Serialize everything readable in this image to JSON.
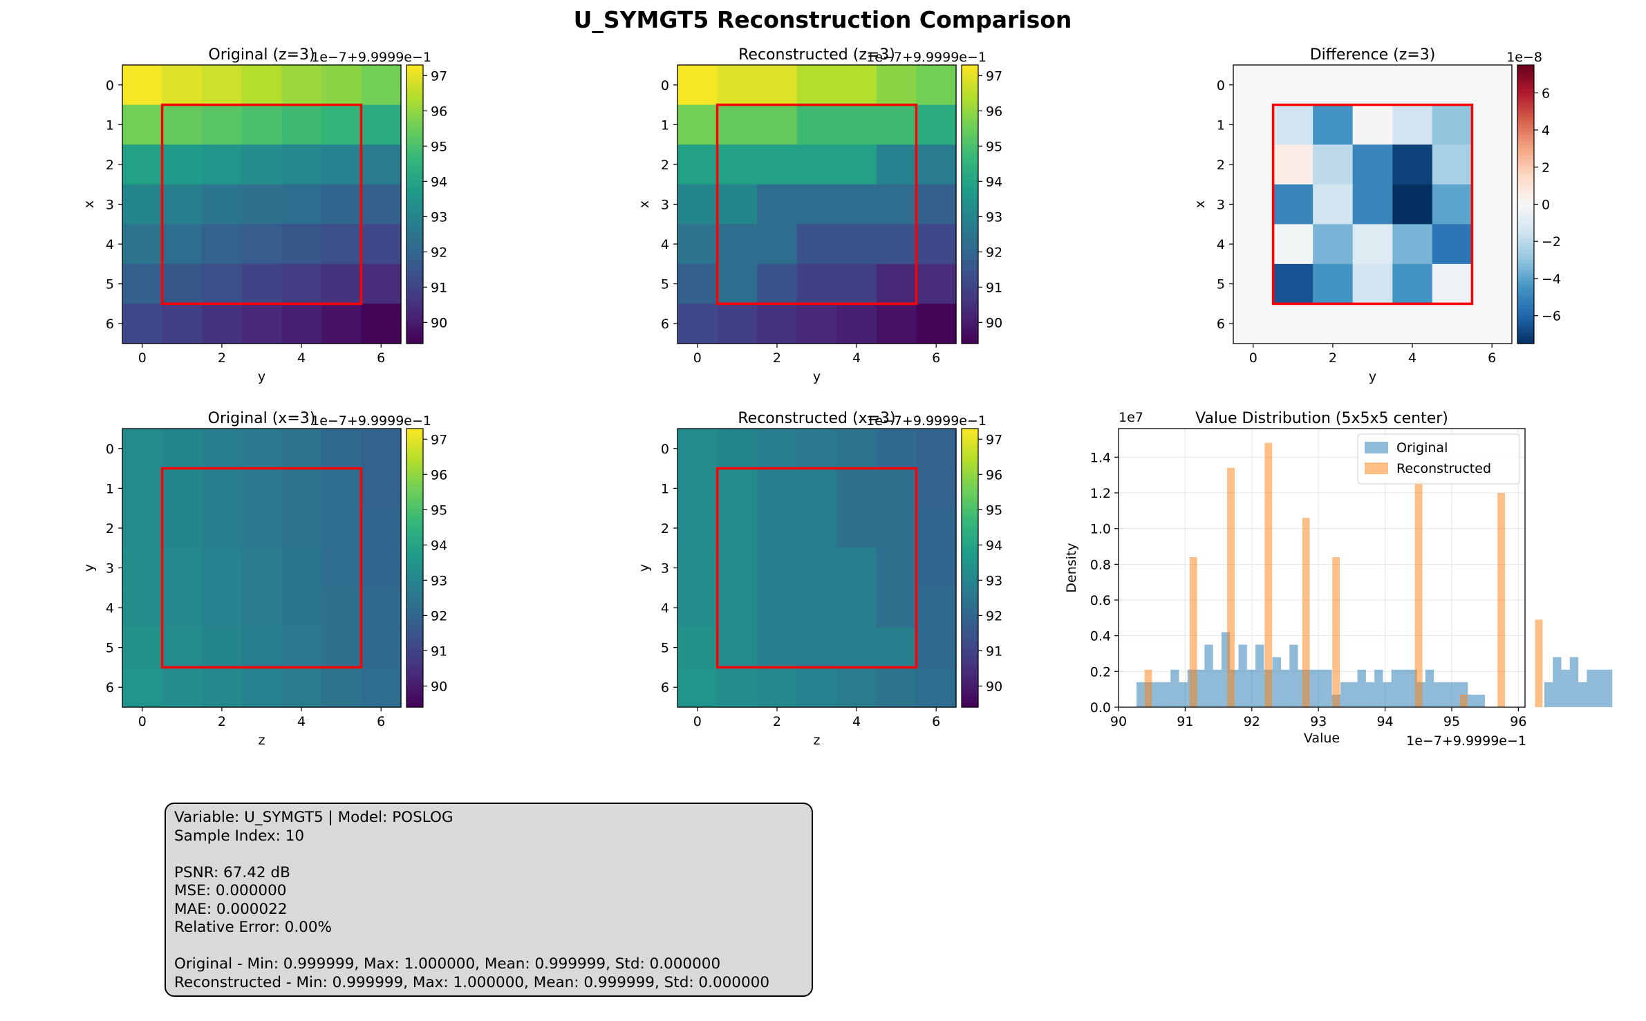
{
  "suptitle": "U_SYMGT5 Reconstruction Comparison",
  "colors": {
    "highlight_box": "#ff0000",
    "original_hist": "#1f77b4",
    "reconstructed_hist": "#ff7f0e"
  },
  "chart_data": [
    {
      "type": "heatmap",
      "title": "Original (z=3)",
      "xlabel": "y",
      "ylabel": "x",
      "xticks": [
        "0",
        "2",
        "4",
        "6"
      ],
      "yticks": [
        "0",
        "1",
        "2",
        "3",
        "4",
        "5",
        "6"
      ],
      "colormap": "viridis",
      "vmin": 89.4,
      "vmax": 97.3,
      "colorbar_ticks": [
        "90",
        "91",
        "92",
        "93",
        "94",
        "95",
        "96",
        "97"
      ],
      "offset_text": "1e−7+9.9999e−1",
      "highlight_box": {
        "x_range": [
          0.5,
          5.5
        ],
        "y_range": [
          0.5,
          5.5
        ]
      },
      "values": [
        [
          97.2,
          96.9,
          96.7,
          96.4,
          96.1,
          95.9,
          95.6
        ],
        [
          95.6,
          95.4,
          95.2,
          95.0,
          94.8,
          94.6,
          94.3
        ],
        [
          93.9,
          93.7,
          93.5,
          93.3,
          93.1,
          92.9,
          92.7
        ],
        [
          93.0,
          92.8,
          92.5,
          92.3,
          92.2,
          92.0,
          91.8
        ],
        [
          92.4,
          92.2,
          91.9,
          91.7,
          91.5,
          91.3,
          91.1
        ],
        [
          91.8,
          91.5,
          91.3,
          91.0,
          90.8,
          90.6,
          90.4
        ],
        [
          91.1,
          90.9,
          90.6,
          90.3,
          90.1,
          89.8,
          89.5
        ]
      ]
    },
    {
      "type": "heatmap",
      "title": "Reconstructed (z=3)",
      "xlabel": "y",
      "ylabel": "x",
      "xticks": [
        "0",
        "2",
        "4",
        "6"
      ],
      "yticks": [
        "0",
        "1",
        "2",
        "3",
        "4",
        "5",
        "6"
      ],
      "colormap": "viridis",
      "vmin": 89.4,
      "vmax": 97.3,
      "colorbar_ticks": [
        "90",
        "91",
        "92",
        "93",
        "94",
        "95",
        "96",
        "97"
      ],
      "offset_text": "1e−7+9.9999e−1",
      "highlight_box": {
        "x_range": [
          0.5,
          5.5
        ],
        "y_range": [
          0.5,
          5.5
        ]
      },
      "values": [
        [
          97.2,
          96.9,
          96.9,
          96.4,
          96.4,
          95.9,
          95.6
        ],
        [
          95.6,
          95.4,
          95.4,
          94.8,
          94.8,
          94.8,
          94.3
        ],
        [
          93.9,
          93.9,
          93.9,
          93.9,
          93.9,
          92.9,
          92.7
        ],
        [
          93.0,
          93.0,
          92.2,
          92.2,
          92.2,
          92.2,
          91.8
        ],
        [
          92.4,
          92.2,
          92.2,
          91.4,
          91.4,
          91.4,
          91.1
        ],
        [
          91.8,
          92.2,
          91.4,
          90.9,
          90.9,
          90.3,
          90.4
        ],
        [
          91.1,
          90.9,
          90.6,
          90.3,
          90.1,
          89.8,
          89.5
        ]
      ]
    },
    {
      "type": "heatmap",
      "title": "Difference (z=3)",
      "xlabel": "y",
      "ylabel": "x",
      "xticks": [
        "0",
        "2",
        "4",
        "6"
      ],
      "yticks": [
        "0",
        "1",
        "2",
        "3",
        "4",
        "5",
        "6"
      ],
      "colormap": "RdBu_r",
      "vmin": -7.5,
      "vmax": 7.5,
      "colorbar_ticks": [
        "6",
        "4",
        "2",
        "0",
        "−2",
        "−4",
        "−6"
      ],
      "colorbar_tick_values": [
        6,
        4,
        2,
        0,
        -2,
        -4,
        -6
      ],
      "offset_text": "1e−8",
      "highlight_box": {
        "x_range": [
          0.5,
          5.5
        ],
        "y_range": [
          0.5,
          5.5
        ]
      },
      "values": [
        [
          0,
          0,
          0,
          0,
          0,
          0,
          0
        ],
        [
          0,
          -1.5,
          -4.5,
          0.1,
          -1.5,
          -3.0,
          0
        ],
        [
          0,
          0.6,
          -2.0,
          -5.0,
          -7.0,
          -2.5,
          0
        ],
        [
          0,
          -5.0,
          -1.5,
          -5.0,
          -7.5,
          -4.0,
          0
        ],
        [
          0,
          -0.2,
          -3.5,
          -1.0,
          -3.5,
          -5.5,
          0
        ],
        [
          0,
          -6.5,
          -4.5,
          -1.5,
          -4.5,
          -0.4,
          0
        ],
        [
          0,
          0,
          0,
          0,
          0,
          0,
          0
        ]
      ]
    },
    {
      "type": "heatmap",
      "title": "Original (x=3)",
      "xlabel": "z",
      "ylabel": "y",
      "xticks": [
        "0",
        "2",
        "4",
        "6"
      ],
      "yticks": [
        "0",
        "1",
        "2",
        "3",
        "4",
        "5",
        "6"
      ],
      "colormap": "viridis",
      "vmin": 89.4,
      "vmax": 97.3,
      "colorbar_ticks": [
        "90",
        "91",
        "92",
        "93",
        "94",
        "95",
        "96",
        "97"
      ],
      "offset_text": "1e−7+9.9999e−1",
      "highlight_box": {
        "x_range": [
          0.5,
          5.5
        ],
        "y_range": [
          0.5,
          5.5
        ]
      },
      "values": [
        [
          93.2,
          93.0,
          92.8,
          92.6,
          92.4,
          92.1,
          91.9
        ],
        [
          93.2,
          93.0,
          92.8,
          92.6,
          92.4,
          92.2,
          91.9
        ],
        [
          93.2,
          93.0,
          92.8,
          92.6,
          92.4,
          92.2,
          92.0
        ],
        [
          93.3,
          93.1,
          92.9,
          92.7,
          92.5,
          92.2,
          92.0
        ],
        [
          93.3,
          93.1,
          92.9,
          92.7,
          92.5,
          92.3,
          92.1
        ],
        [
          93.4,
          93.2,
          93.0,
          92.8,
          92.6,
          92.3,
          92.1
        ],
        [
          93.5,
          93.3,
          93.1,
          92.9,
          92.7,
          92.4,
          92.2
        ]
      ]
    },
    {
      "type": "heatmap",
      "title": "Reconstructed (x=3)",
      "xlabel": "z",
      "ylabel": "y",
      "xticks": [
        "0",
        "2",
        "4",
        "6"
      ],
      "yticks": [
        "0",
        "1",
        "2",
        "3",
        "4",
        "5",
        "6"
      ],
      "colormap": "viridis",
      "vmin": 89.4,
      "vmax": 97.3,
      "colorbar_ticks": [
        "90",
        "91",
        "92",
        "93",
        "94",
        "95",
        "96",
        "97"
      ],
      "offset_text": "1e−7+9.9999e−1",
      "highlight_box": {
        "x_range": [
          0.5,
          5.5
        ],
        "y_range": [
          0.5,
          5.5
        ]
      },
      "values": [
        [
          93.2,
          93.0,
          92.8,
          92.6,
          92.4,
          92.1,
          91.9
        ],
        [
          93.2,
          93.2,
          92.8,
          92.8,
          92.3,
          92.3,
          91.9
        ],
        [
          93.2,
          93.2,
          92.8,
          92.8,
          92.3,
          92.3,
          92.0
        ],
        [
          93.3,
          93.2,
          92.8,
          92.8,
          92.8,
          92.3,
          92.0
        ],
        [
          93.3,
          93.2,
          92.8,
          92.8,
          92.8,
          92.3,
          92.1
        ],
        [
          93.4,
          93.2,
          92.8,
          92.8,
          92.8,
          92.8,
          92.1
        ],
        [
          93.5,
          93.3,
          93.1,
          92.9,
          92.7,
          92.4,
          92.2
        ]
      ]
    },
    {
      "type": "histogram",
      "title": "Value Distribution (5x5x5 center)",
      "xlabel": "Value",
      "ylabel": "Density",
      "xlim": [
        90,
        96.1
      ],
      "ylim": [
        0,
        1.56
      ],
      "xticks": [
        90,
        91,
        92,
        93,
        94,
        95,
        96
      ],
      "yticks": [
        0.0,
        0.2,
        0.4,
        0.6,
        0.8,
        1.0,
        1.2,
        1.4
      ],
      "y_offset_text": "1e7",
      "x_offset_text": "1e−7+9.9999e−1",
      "grid": true,
      "legend_position": "upper right",
      "series": [
        {
          "name": "Original",
          "bin_start": 90.27,
          "bin_width": 0.1275,
          "values": [
            0.14,
            0.14,
            0.14,
            0.14,
            0.21,
            0.14,
            0.21,
            0.21,
            0.35,
            0.21,
            0.42,
            0.21,
            0.35,
            0.21,
            0.35,
            0.21,
            0.28,
            0.21,
            0.35,
            0.21,
            0.21,
            0.21,
            0.21,
            0.07,
            0.14,
            0.14,
            0.21,
            0.14,
            0.21,
            0.14,
            0.21,
            0.21,
            0.21,
            0.14,
            0.21,
            0.14,
            0.14,
            0.14,
            0.14,
            0.07,
            0.07,
            0.0,
            0.0,
            0.0,
            0.0,
            0.0,
            0.0,
            0.0,
            0.14,
            0.28,
            0.21,
            0.28,
            0.14,
            0.21,
            0.21,
            0.21
          ]
        },
        {
          "name": "Reconstructed",
          "bin_start": 90.39,
          "bin_width": 0.1127,
          "values": [
            0.21,
            0,
            0,
            0,
            0,
            0,
            0.84,
            0,
            0,
            0,
            0,
            1.34,
            0,
            0,
            0,
            0,
            1.48,
            0,
            0,
            0,
            0,
            1.06,
            0,
            0,
            0,
            0.84,
            0,
            0,
            0,
            0,
            0,
            0,
            0,
            0,
            0,
            0,
            1.27,
            0,
            0,
            0,
            0,
            0,
            0.07,
            0,
            0,
            0,
            0,
            1.2,
            0,
            0,
            0,
            0,
            0.49
          ]
        }
      ]
    }
  ],
  "stats_box": {
    "lines": [
      "Variable: U_SYMGT5 | Model: POSLOG",
      "Sample Index: 10",
      "",
      "PSNR: 67.42 dB",
      "MSE: 0.000000",
      "MAE: 0.000022",
      "Relative Error: 0.00%",
      "",
      "Original - Min: 0.999999, Max: 1.000000, Mean: 0.999999, Std: 0.000000",
      "Reconstructed - Min: 0.999999, Max: 1.000000, Mean: 0.999999, Std: 0.000000"
    ]
  }
}
